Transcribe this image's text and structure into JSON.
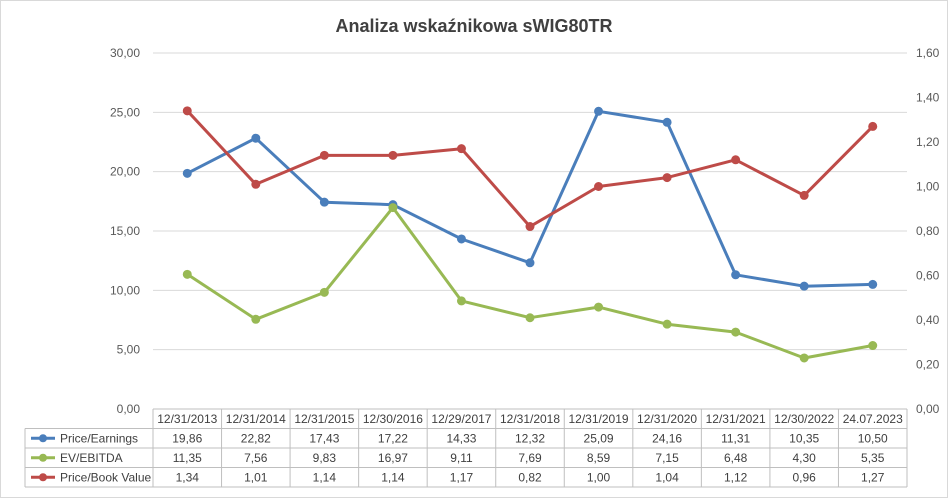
{
  "chart_data": {
    "type": "line",
    "title": "Analiza wskaźnikowa sWIG80TR",
    "categories": [
      "12/31/2013",
      "12/31/2014",
      "12/31/2015",
      "12/30/2016",
      "12/29/2017",
      "12/31/2018",
      "12/31/2019",
      "12/31/2020",
      "12/31/2021",
      "12/30/2022",
      "24.07.2023"
    ],
    "y_left": {
      "min": 0,
      "max": 30,
      "step": 5,
      "ticks": [
        "0,00",
        "5,00",
        "10,00",
        "15,00",
        "20,00",
        "25,00",
        "30,00"
      ]
    },
    "y_right": {
      "min": 0,
      "max": 1.6,
      "step": 0.2,
      "ticks": [
        "0,00",
        "0,20",
        "0,40",
        "0,60",
        "0,80",
        "1,00",
        "1,20",
        "1,40",
        "1,60"
      ]
    },
    "grid": true,
    "legend": "data-table",
    "series": [
      {
        "name": "Price/Earnings",
        "axis": "left",
        "color": "#4a7ebb",
        "values": [
          19.86,
          22.82,
          17.43,
          17.22,
          14.33,
          12.32,
          25.09,
          24.16,
          11.31,
          10.35,
          10.5
        ],
        "labels": [
          "19,86",
          "22,82",
          "17,43",
          "17,22",
          "14,33",
          "12,32",
          "25,09",
          "24,16",
          "11,31",
          "10,35",
          "10,50"
        ]
      },
      {
        "name": "EV/EBITDA",
        "axis": "left",
        "color": "#98b954",
        "values": [
          11.35,
          7.56,
          9.83,
          16.97,
          9.11,
          7.69,
          8.59,
          7.15,
          6.48,
          4.3,
          5.35
        ],
        "labels": [
          "11,35",
          "7,56",
          "9,83",
          "16,97",
          "9,11",
          "7,69",
          "8,59",
          "7,15",
          "6,48",
          "4,30",
          "5,35"
        ]
      },
      {
        "name": "Price/Book Value",
        "axis": "right",
        "color": "#be4b48",
        "values": [
          1.34,
          1.01,
          1.14,
          1.14,
          1.17,
          0.82,
          1.0,
          1.04,
          1.12,
          0.96,
          1.27
        ],
        "labels": [
          "1,34",
          "1,01",
          "1,14",
          "1,14",
          "1,17",
          "0,82",
          "1,00",
          "1,04",
          "1,12",
          "0,96",
          "1,27"
        ]
      }
    ]
  }
}
